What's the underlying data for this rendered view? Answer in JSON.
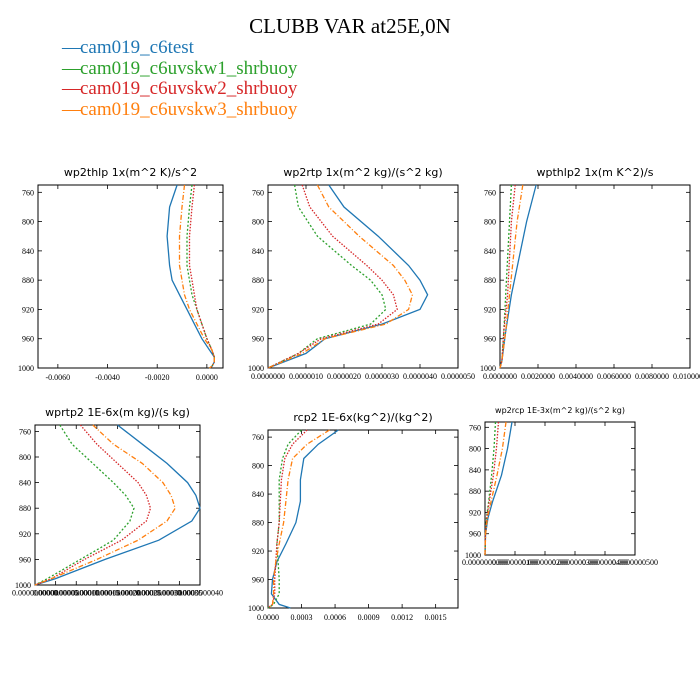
{
  "title": "CLUBB VAR at25E,0N",
  "legend": [
    {
      "name": "cam019_c6test",
      "color": "#1f77b4"
    },
    {
      "name": "cam019_c6uvskw1_shrbuoy",
      "color": "#2ca02c"
    },
    {
      "name": "cam019_c6uvskw2_shrbuoy",
      "color": "#d62728"
    },
    {
      "name": "cam019_c6uvskw3_shrbuoy",
      "color": "#ff7f0e"
    }
  ],
  "chart_data": [
    {
      "type": "line",
      "title": "wp2thlp  1x(m^2 K)/s^2",
      "ylim": [
        1000,
        750
      ],
      "yticks": [
        760,
        800,
        840,
        880,
        920,
        960,
        1000
      ],
      "xlim": [
        -0.0068,
        0.00065
      ],
      "xticks": [
        -0.006,
        -0.004,
        -0.002,
        0.0
      ],
      "xticklabels": [
        "-0.0060",
        "-0.0040",
        "-0.0020",
        "0.0000"
      ],
      "grid": false,
      "series": [
        {
          "name": "cam019_c6test",
          "y": [
            750,
            780,
            820,
            860,
            880,
            900,
            920,
            940,
            960,
            975,
            985,
            992,
            998,
            1000
          ],
          "x": [
            -0.0012,
            -0.0015,
            -0.0016,
            -0.0015,
            -0.0014,
            -0.0011,
            -0.0008,
            -0.0005,
            -0.0002,
            0.0001,
            0.0003,
            0.0003,
            0.0002,
            0.0001
          ]
        },
        {
          "name": "cam019_c6uvskw1_shrbuoy",
          "y": [
            750,
            780,
            820,
            860,
            880,
            900,
            920,
            940,
            960,
            975,
            985,
            992,
            998,
            1000
          ],
          "x": [
            -0.0006,
            -0.0007,
            -0.0008,
            -0.0008,
            -0.0007,
            -0.0006,
            -0.0004,
            -0.0002,
            0.0,
            0.0002,
            0.0003,
            0.0003,
            0.0002,
            0.0001
          ]
        },
        {
          "name": "cam019_c6uvskw2_shrbuoy",
          "y": [
            750,
            780,
            820,
            860,
            880,
            900,
            920,
            940,
            960,
            975,
            985,
            992,
            998,
            1000
          ],
          "x": [
            -0.0005,
            -0.0006,
            -0.0007,
            -0.0007,
            -0.0006,
            -0.0005,
            -0.0004,
            -0.0002,
            0.0,
            0.0002,
            0.0003,
            0.0003,
            0.0002,
            0.0001
          ]
        },
        {
          "name": "cam019_c6uvskw3_shrbuoy",
          "y": [
            750,
            780,
            820,
            860,
            880,
            900,
            920,
            940,
            960,
            975,
            985,
            992,
            998,
            1000
          ],
          "x": [
            -0.0009,
            -0.001,
            -0.0011,
            -0.0011,
            -0.001,
            -0.0009,
            -0.0007,
            -0.0004,
            -0.0001,
            0.0002,
            0.0003,
            0.0003,
            0.0002,
            0.0001
          ]
        }
      ]
    },
    {
      "type": "line",
      "title": "wp2rtp  1x(m^2 kg)/(s^2 kg)",
      "ylim": [
        1000,
        750
      ],
      "yticks": [
        760,
        800,
        840,
        880,
        920,
        960,
        1000
      ],
      "xlim": [
        0,
        5e-06
      ],
      "xticks": [
        0,
        1e-06,
        2e-06,
        3e-06,
        4e-06,
        5e-06
      ],
      "xticklabels": [
        "0.0000000",
        "0.0000010",
        "0.0000020",
        "0.0000030",
        "0.0000040",
        "0.0000050"
      ],
      "grid": false,
      "series": [
        {
          "name": "cam019_c6test",
          "y": [
            750,
            780,
            820,
            860,
            880,
            900,
            920,
            940,
            960,
            980,
            1000
          ],
          "x": [
            1.6e-06,
            2e-06,
            2.9e-06,
            3.7e-06,
            4e-06,
            4.2e-06,
            4e-06,
            3e-06,
            1.5e-06,
            1e-06,
            0.0
          ]
        },
        {
          "name": "cam019_c6uvskw1_shrbuoy",
          "y": [
            750,
            780,
            820,
            860,
            880,
            900,
            920,
            940,
            960,
            980,
            1000
          ],
          "x": [
            7e-07,
            8e-07,
            1.3e-06,
            2.2e-06,
            2.7e-06,
            3e-06,
            3.1e-06,
            2.7e-06,
            1.3e-06,
            8e-07,
            0.0
          ]
        },
        {
          "name": "cam019_c6uvskw2_shrbuoy",
          "y": [
            750,
            780,
            820,
            860,
            880,
            900,
            920,
            940,
            960,
            980,
            1000
          ],
          "x": [
            9e-07,
            1.1e-06,
            1.7e-06,
            2.6e-06,
            3e-06,
            3.3e-06,
            3.4e-06,
            2.9e-06,
            1.4e-06,
            8e-07,
            0.0
          ]
        },
        {
          "name": "cam019_c6uvskw3_shrbuoy",
          "y": [
            750,
            780,
            820,
            860,
            880,
            900,
            920,
            940,
            960,
            980,
            1000
          ],
          "x": [
            1.3e-06,
            1.6e-06,
            2.4e-06,
            3.3e-06,
            3.6e-06,
            3.8e-06,
            3.7e-06,
            3.1e-06,
            1.5e-06,
            9e-07,
            0.0
          ]
        }
      ]
    },
    {
      "type": "line",
      "title": "wpthlp2  1x(m K^2)/s",
      "ylim": [
        1000,
        750
      ],
      "yticks": [
        760,
        800,
        840,
        880,
        920,
        960,
        1000
      ],
      "xlim": [
        0,
        0.01
      ],
      "xticks": [
        0,
        0.002,
        0.004,
        0.006,
        0.008,
        0.01
      ],
      "xticklabels": [
        "0.0000000",
        "0.0020000",
        "0.0040000",
        "0.0060000",
        "0.0080000",
        "0.0100000"
      ],
      "grid": false,
      "series": [
        {
          "name": "cam019_c6test",
          "y": [
            750,
            800,
            850,
            900,
            950,
            990,
            1000
          ],
          "x": [
            0.0019,
            0.0014,
            0.001,
            0.0006,
            0.0003,
            0.0001,
            0.0
          ]
        },
        {
          "name": "cam019_c6uvskw1_shrbuoy",
          "y": [
            750,
            800,
            850,
            900,
            950,
            990,
            1000
          ],
          "x": [
            0.0006,
            0.0005,
            0.0004,
            0.0003,
            0.0002,
            0.0001,
            0.0
          ]
        },
        {
          "name": "cam019_c6uvskw2_shrbuoy",
          "y": [
            750,
            800,
            850,
            900,
            950,
            990,
            1000
          ],
          "x": [
            0.0008,
            0.0006,
            0.0005,
            0.0004,
            0.0002,
            0.0001,
            0.0
          ]
        },
        {
          "name": "cam019_c6uvskw3_shrbuoy",
          "y": [
            750,
            800,
            850,
            900,
            950,
            990,
            1000
          ],
          "x": [
            0.0012,
            0.0009,
            0.0007,
            0.0005,
            0.0003,
            0.0001,
            0.0
          ]
        }
      ]
    },
    {
      "type": "line",
      "title": "wprtp2  1E-6x(m kg)/(s kg)",
      "ylim": [
        1000,
        750
      ],
      "yticks": [
        760,
        800,
        840,
        880,
        920,
        960,
        1000
      ],
      "xlim": [
        0,
        4e-09
      ],
      "xticks": [
        0,
        5e-10,
        1e-09,
        1.5e-09,
        2e-09,
        2.5e-09,
        3e-09,
        3.5e-09,
        4e-09
      ],
      "xticklabels": [
        "0.0000000000",
        "0.0000000005",
        "0.0000000010",
        "0.0000000015",
        "0.0000000020",
        "0.0000000025",
        "0.0000000030",
        "0.0000000035",
        "0.0000000040"
      ],
      "grid": false,
      "series": [
        {
          "name": "cam019_c6test",
          "y": [
            750,
            780,
            810,
            840,
            860,
            880,
            900,
            930,
            960,
            990,
            1000
          ],
          "x": [
            2e-09,
            2.6e-09,
            3.2e-09,
            3.7e-09,
            3.9e-09,
            4e-09,
            3.8e-09,
            3e-09,
            1.7e-09,
            5e-10,
            0.0
          ]
        },
        {
          "name": "cam019_c6uvskw1_shrbuoy",
          "y": [
            750,
            780,
            810,
            840,
            860,
            880,
            900,
            930,
            960,
            990,
            1000
          ],
          "x": [
            6e-10,
            9e-10,
            1.4e-09,
            1.9e-09,
            2.2e-09,
            2.4e-09,
            2.3e-09,
            1.9e-09,
            1.1e-09,
            3e-10,
            0.0
          ]
        },
        {
          "name": "cam019_c6uvskw2_shrbuoy",
          "y": [
            750,
            780,
            810,
            840,
            860,
            880,
            900,
            930,
            960,
            990,
            1000
          ],
          "x": [
            1.1e-09,
            1.5e-09,
            2e-09,
            2.5e-09,
            2.7e-09,
            2.8e-09,
            2.7e-09,
            2.1e-09,
            1.2e-09,
            4e-10,
            0.0
          ]
        },
        {
          "name": "cam019_c6uvskw3_shrbuoy",
          "y": [
            750,
            780,
            810,
            840,
            860,
            880,
            900,
            930,
            960,
            990,
            1000
          ],
          "x": [
            1.4e-09,
            1.9e-09,
            2.6e-09,
            3.1e-09,
            3.3e-09,
            3.4e-09,
            3.2e-09,
            2.5e-09,
            1.5e-09,
            4e-10,
            0.0
          ]
        }
      ]
    },
    {
      "type": "line",
      "title": "rcp2  1E-6x(kg^2)/(kg^2)",
      "ylim": [
        1000,
        750
      ],
      "yticks": [
        760,
        800,
        840,
        880,
        920,
        960,
        1000
      ],
      "xlim": [
        0,
        0.0017
      ],
      "xticks": [
        0,
        0.0003,
        0.0006,
        0.0009,
        0.0012,
        0.0015
      ],
      "xticklabels": [
        "0.0000",
        "0.0003",
        "0.0006",
        "0.0009",
        "0.0012",
        "0.0015"
      ],
      "grid": false,
      "series": [
        {
          "name": "cam019_c6test",
          "y": [
            750,
            770,
            790,
            820,
            850,
            880,
            910,
            935,
            960,
            980,
            995,
            1000
          ],
          "x": [
            0.00063,
            0.00045,
            0.00032,
            0.00029,
            0.00029,
            0.00025,
            0.00016,
            8e-05,
            4e-05,
            3e-05,
            0.0001,
            0.0002
          ]
        },
        {
          "name": "cam019_c6uvskw1_shrbuoy",
          "y": [
            750,
            770,
            790,
            820,
            850,
            880,
            910,
            935,
            960,
            980,
            995,
            1000
          ],
          "x": [
            0.0003,
            0.00018,
            0.00013,
            0.0001,
            0.0001,
            0.0001,
            8e-05,
            9e-05,
            0.0001,
            0.0001,
            5e-05,
            0.0
          ]
        },
        {
          "name": "cam019_c6uvskw2_shrbuoy",
          "y": [
            750,
            770,
            790,
            820,
            850,
            880,
            910,
            935,
            960,
            980,
            995,
            1000
          ],
          "x": [
            0.00035,
            0.00022,
            0.00015,
            0.00012,
            0.00011,
            0.0001,
            8e-05,
            7e-05,
            6e-05,
            6e-05,
            4e-05,
            0.0
          ]
        },
        {
          "name": "cam019_c6uvskw3_shrbuoy",
          "y": [
            750,
            770,
            790,
            820,
            850,
            880,
            910,
            935,
            960,
            980,
            995,
            1000
          ],
          "x": [
            0.00055,
            0.00035,
            0.00022,
            0.00018,
            0.00016,
            0.00014,
            0.0001,
            7e-05,
            5e-05,
            5e-05,
            4e-05,
            0.0
          ]
        }
      ]
    },
    {
      "type": "line",
      "title": "wp2rcp  1E-3x(m^2 kg)/(s^2 kg)",
      "ylim": [
        1000,
        750
      ],
      "yticks": [
        760,
        800,
        840,
        880,
        920,
        960,
        1000
      ],
      "xlim": [
        0,
        5e-08
      ],
      "xticks": [
        0,
        1e-08,
        2e-08,
        3e-08,
        4e-08,
        5e-08
      ],
      "xticklabels": [
        "0.0000000000",
        "0.0000000100",
        "0.0000000200",
        "0.0000000300",
        "0.0000000400",
        "0.0000000500"
      ],
      "grid": false,
      "series": [
        {
          "name": "cam019_c6test",
          "y": [
            750,
            800,
            850,
            900,
            930,
            960,
            1000
          ],
          "x": [
            9e-09,
            7.5e-09,
            5.5e-09,
            2.5e-09,
            1e-09,
            2e-10,
            0.0
          ]
        },
        {
          "name": "cam019_c6uvskw1_shrbuoy",
          "y": [
            750,
            800,
            850,
            900,
            930,
            960,
            1000
          ],
          "x": [
            3.5e-09,
            3e-09,
            2.2e-09,
            1.2e-09,
            5e-10,
            1e-10,
            0.0
          ]
        },
        {
          "name": "cam019_c6uvskw2_shrbuoy",
          "y": [
            750,
            800,
            850,
            900,
            930,
            960,
            1000
          ],
          "x": [
            4.5e-09,
            3.8e-09,
            2.8e-09,
            1.4e-09,
            6e-10,
            1e-10,
            0.0
          ]
        },
        {
          "name": "cam019_c6uvskw3_shrbuoy",
          "y": [
            750,
            800,
            850,
            900,
            930,
            960,
            1000
          ],
          "x": [
            7e-09,
            5.8e-09,
            4e-09,
            2e-09,
            8e-10,
            2e-10,
            0.0
          ]
        }
      ]
    }
  ]
}
